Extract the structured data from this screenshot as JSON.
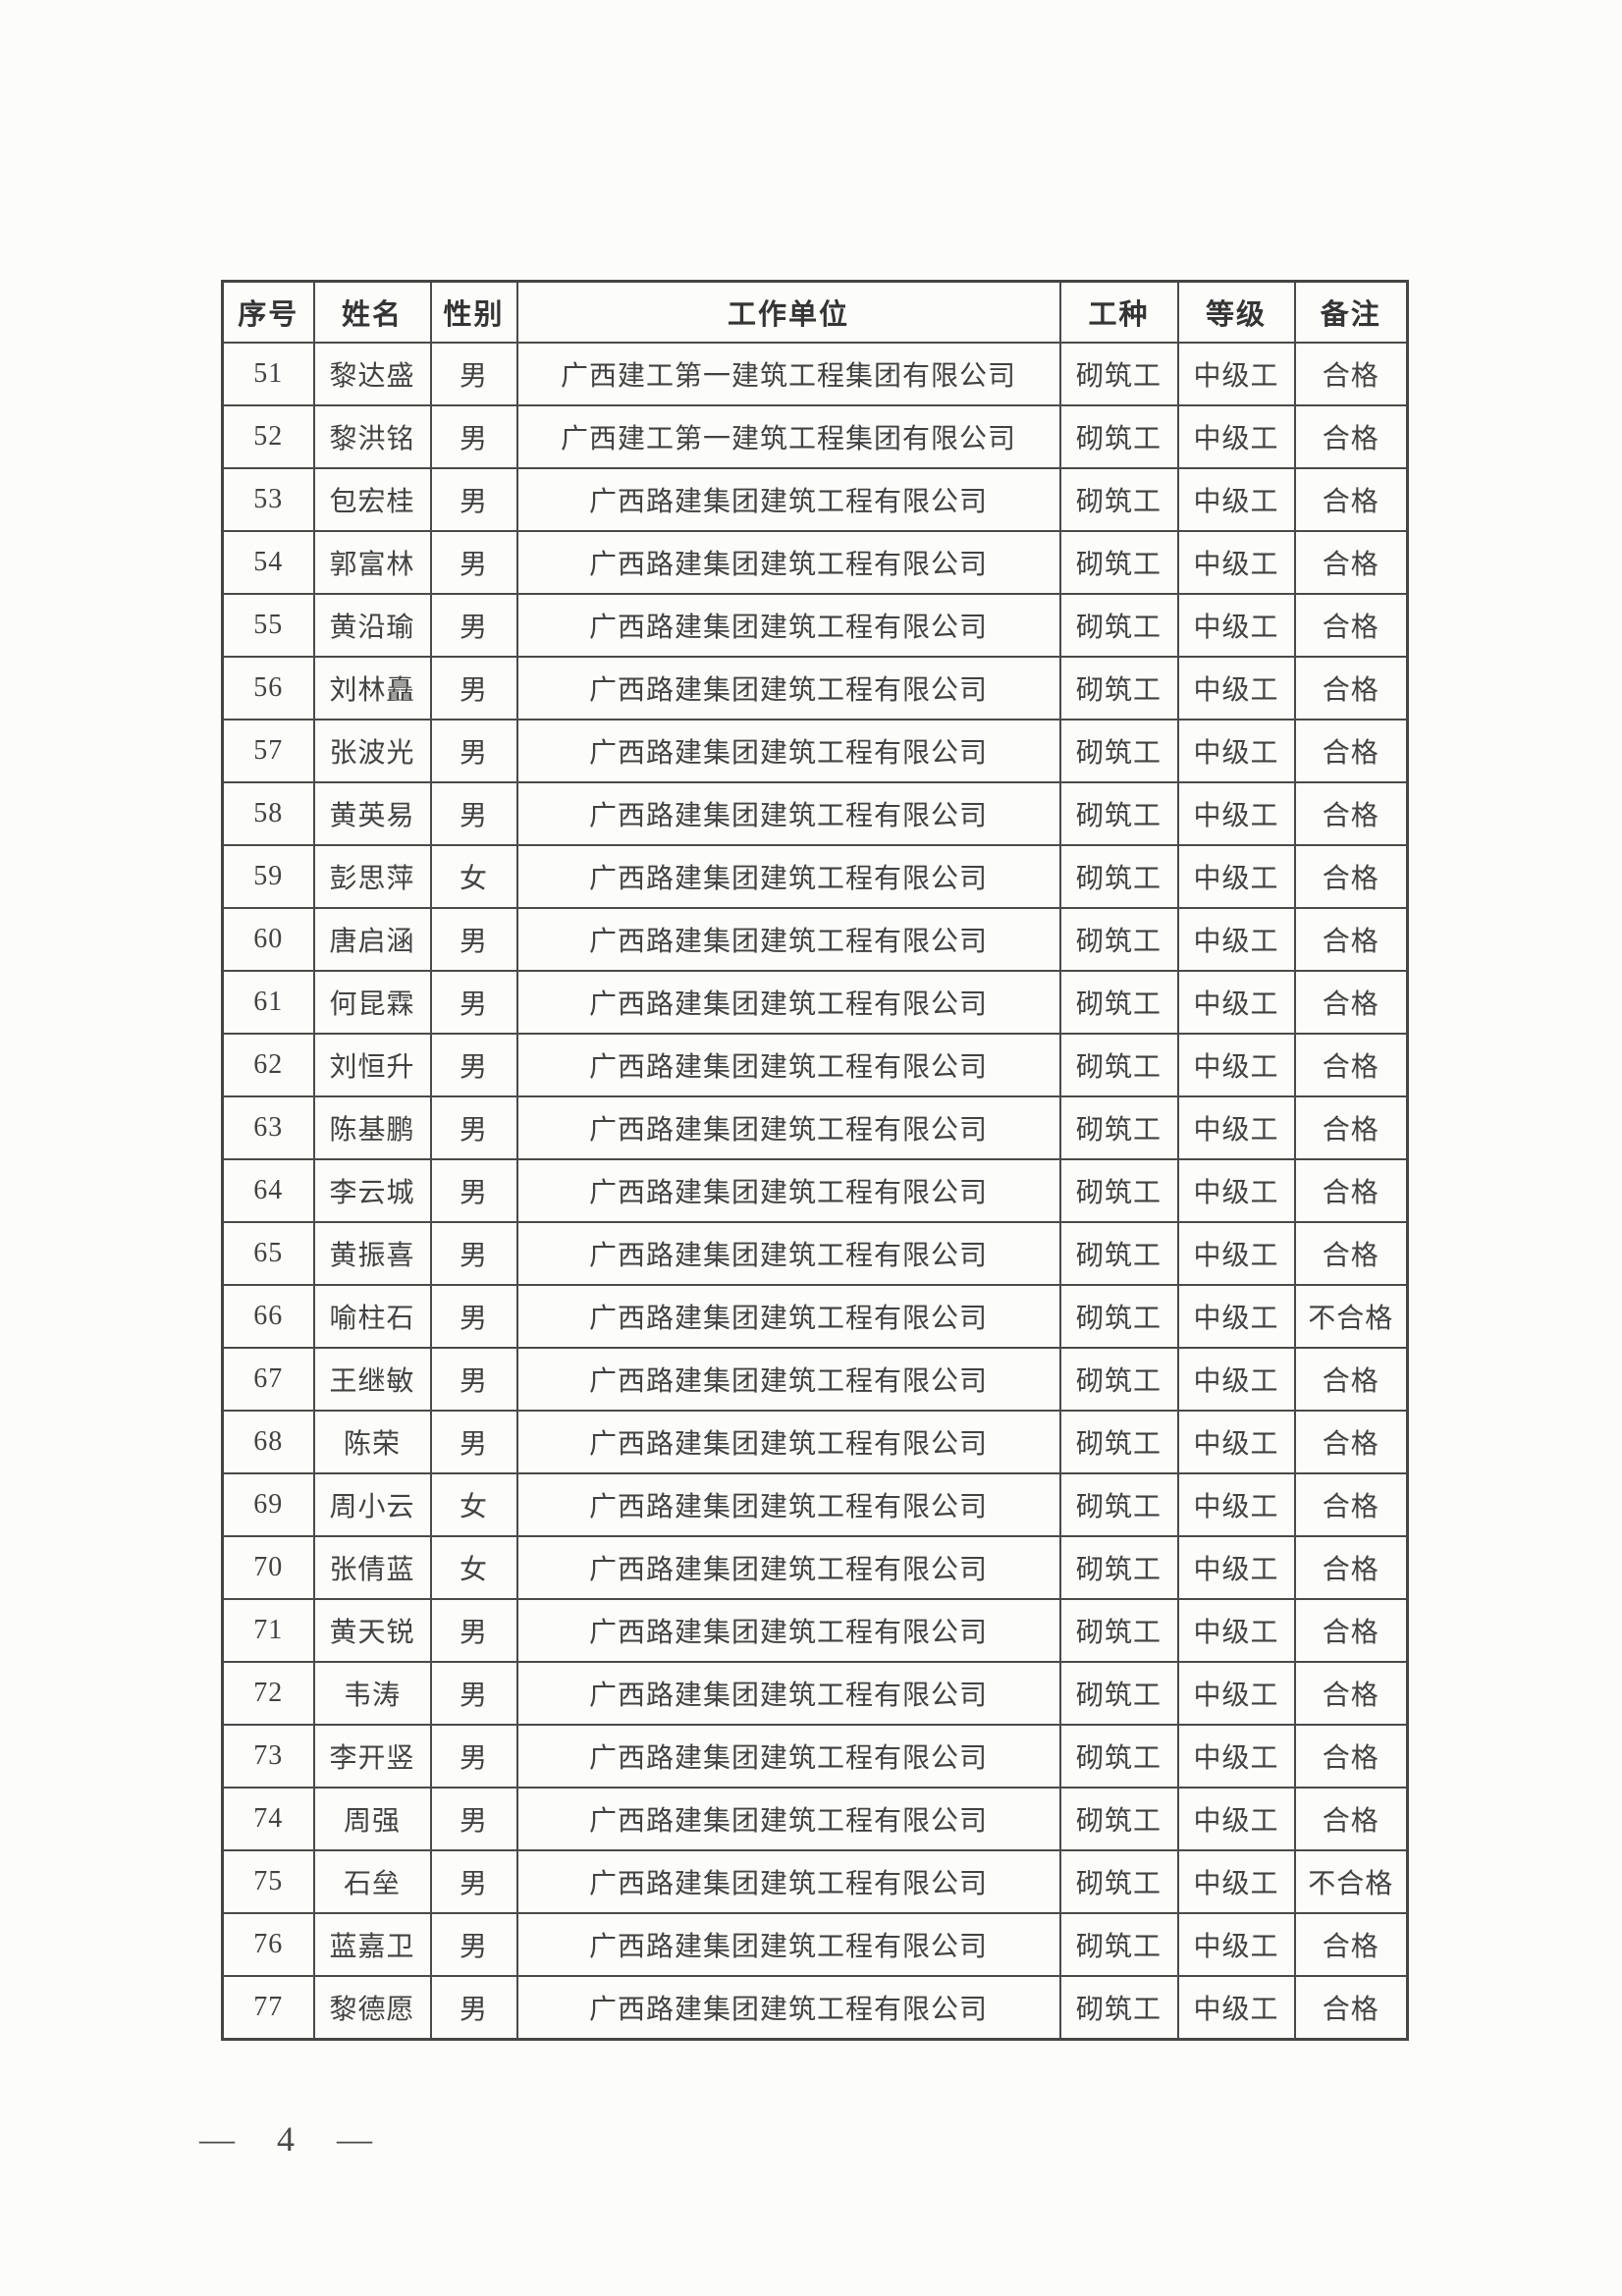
{
  "page": {
    "number_label": "— 4 —"
  },
  "table": {
    "headers": [
      "序号",
      "姓名",
      "性别",
      "工作单位",
      "工种",
      "等级",
      "备注"
    ],
    "rows": [
      [
        "51",
        "黎达盛",
        "男",
        "广西建工第一建筑工程集团有限公司",
        "砌筑工",
        "中级工",
        "合格"
      ],
      [
        "52",
        "黎洪铭",
        "男",
        "广西建工第一建筑工程集团有限公司",
        "砌筑工",
        "中级工",
        "合格"
      ],
      [
        "53",
        "包宏桂",
        "男",
        "广西路建集团建筑工程有限公司",
        "砌筑工",
        "中级工",
        "合格"
      ],
      [
        "54",
        "郭富林",
        "男",
        "广西路建集团建筑工程有限公司",
        "砌筑工",
        "中级工",
        "合格"
      ],
      [
        "55",
        "黄沿瑜",
        "男",
        "广西路建集团建筑工程有限公司",
        "砌筑工",
        "中级工",
        "合格"
      ],
      [
        "56",
        "刘林矗",
        "男",
        "广西路建集团建筑工程有限公司",
        "砌筑工",
        "中级工",
        "合格"
      ],
      [
        "57",
        "张波光",
        "男",
        "广西路建集团建筑工程有限公司",
        "砌筑工",
        "中级工",
        "合格"
      ],
      [
        "58",
        "黄英易",
        "男",
        "广西路建集团建筑工程有限公司",
        "砌筑工",
        "中级工",
        "合格"
      ],
      [
        "59",
        "彭思萍",
        "女",
        "广西路建集团建筑工程有限公司",
        "砌筑工",
        "中级工",
        "合格"
      ],
      [
        "60",
        "唐启涵",
        "男",
        "广西路建集团建筑工程有限公司",
        "砌筑工",
        "中级工",
        "合格"
      ],
      [
        "61",
        "何昆霖",
        "男",
        "广西路建集团建筑工程有限公司",
        "砌筑工",
        "中级工",
        "合格"
      ],
      [
        "62",
        "刘恒升",
        "男",
        "广西路建集团建筑工程有限公司",
        "砌筑工",
        "中级工",
        "合格"
      ],
      [
        "63",
        "陈基鹏",
        "男",
        "广西路建集团建筑工程有限公司",
        "砌筑工",
        "中级工",
        "合格"
      ],
      [
        "64",
        "李云城",
        "男",
        "广西路建集团建筑工程有限公司",
        "砌筑工",
        "中级工",
        "合格"
      ],
      [
        "65",
        "黄振喜",
        "男",
        "广西路建集团建筑工程有限公司",
        "砌筑工",
        "中级工",
        "合格"
      ],
      [
        "66",
        "喻柱石",
        "男",
        "广西路建集团建筑工程有限公司",
        "砌筑工",
        "中级工",
        "不合格"
      ],
      [
        "67",
        "王继敏",
        "男",
        "广西路建集团建筑工程有限公司",
        "砌筑工",
        "中级工",
        "合格"
      ],
      [
        "68",
        "陈荣",
        "男",
        "广西路建集团建筑工程有限公司",
        "砌筑工",
        "中级工",
        "合格"
      ],
      [
        "69",
        "周小云",
        "女",
        "广西路建集团建筑工程有限公司",
        "砌筑工",
        "中级工",
        "合格"
      ],
      [
        "70",
        "张倩蓝",
        "女",
        "广西路建集团建筑工程有限公司",
        "砌筑工",
        "中级工",
        "合格"
      ],
      [
        "71",
        "黄天锐",
        "男",
        "广西路建集团建筑工程有限公司",
        "砌筑工",
        "中级工",
        "合格"
      ],
      [
        "72",
        "韦涛",
        "男",
        "广西路建集团建筑工程有限公司",
        "砌筑工",
        "中级工",
        "合格"
      ],
      [
        "73",
        "李开竖",
        "男",
        "广西路建集团建筑工程有限公司",
        "砌筑工",
        "中级工",
        "合格"
      ],
      [
        "74",
        "周强",
        "男",
        "广西路建集团建筑工程有限公司",
        "砌筑工",
        "中级工",
        "合格"
      ],
      [
        "75",
        "石垒",
        "男",
        "广西路建集团建筑工程有限公司",
        "砌筑工",
        "中级工",
        "不合格"
      ],
      [
        "76",
        "蓝嘉卫",
        "男",
        "广西路建集团建筑工程有限公司",
        "砌筑工",
        "中级工",
        "合格"
      ],
      [
        "77",
        "黎德愿",
        "男",
        "广西路建集团建筑工程有限公司",
        "砌筑工",
        "中级工",
        "合格"
      ]
    ]
  }
}
